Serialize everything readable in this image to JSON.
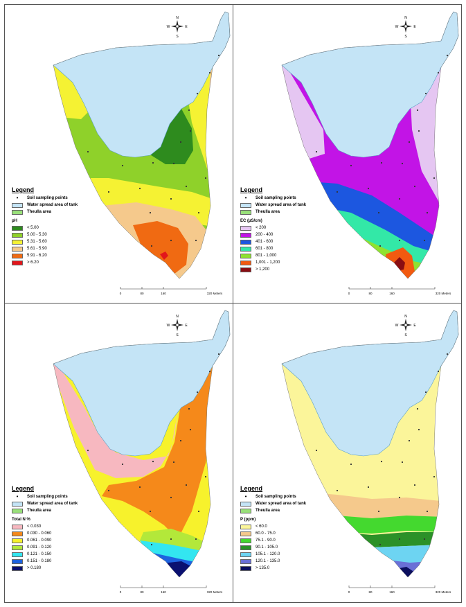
{
  "panels": [
    {
      "id": "ph",
      "legend_title": "Legend",
      "common": {
        "points": "Soil sampling points",
        "water": "Water spread area of tank",
        "theulla": "Theulla area"
      },
      "variable": "pH",
      "classes": [
        {
          "label": "< 5.00",
          "color": "#2e8b1e"
        },
        {
          "label": "5.00 - 5.30",
          "color": "#8fd12a"
        },
        {
          "label": "5.31 - 5.60",
          "color": "#f5f233"
        },
        {
          "label": "5.61 - 5.90",
          "color": "#f5c98c"
        },
        {
          "label": "5.91 - 6.20",
          "color": "#f06a12"
        },
        {
          "label": "> 6.20",
          "color": "#e2161b"
        }
      ]
    },
    {
      "id": "ec",
      "legend_title": "Legend",
      "common": {
        "points": "Soil sampling points",
        "water": "Water spread area of tank",
        "theulla": "Theulla area"
      },
      "variable": "EC (µS/cm)",
      "classes": [
        {
          "label": "< 200",
          "color": "#e5c6f2"
        },
        {
          "label": "200 - 400",
          "color": "#c214e6"
        },
        {
          "label": "401 - 600",
          "color": "#1c57e0"
        },
        {
          "label": "601 - 800",
          "color": "#33e8a7"
        },
        {
          "label": "801 - 1,000",
          "color": "#8fe230"
        },
        {
          "label": "1,001 - 1,200",
          "color": "#f25a10"
        },
        {
          "label": "> 1,200",
          "color": "#8a0d12"
        }
      ]
    },
    {
      "id": "tn",
      "legend_title": "Legend",
      "common": {
        "points": "Soil sampling points",
        "water": "Water spread area of tank",
        "theulla": "Theulla area"
      },
      "variable": "Total N %",
      "classes": [
        {
          "label": "< 0.030",
          "color": "#f7b8c0"
        },
        {
          "label": "0.030 - 0.060",
          "color": "#f5891a"
        },
        {
          "label": "0.061 - 0.090",
          "color": "#f7f22c"
        },
        {
          "label": "0.091 - 0.120",
          "color": "#b3e83a"
        },
        {
          "label": "0.121 - 0.150",
          "color": "#33e6f0"
        },
        {
          "label": "0.151 - 0.180",
          "color": "#1d63e0"
        },
        {
          "label": "> 0.180",
          "color": "#0a1070"
        }
      ]
    },
    {
      "id": "p",
      "legend_title": "Legend",
      "common": {
        "points": "Soil sampling points",
        "water": "Water spread area of tank",
        "theulla": "Theulla area"
      },
      "variable": "P (ppm)",
      "classes": [
        {
          "label": "< 60.0",
          "color": "#fbf59a"
        },
        {
          "label": "60.0 - 75.0",
          "color": "#f5c98c"
        },
        {
          "label": "75.1 - 90.0",
          "color": "#44d92f"
        },
        {
          "label": "90.1 - 105.0",
          "color": "#2b9128"
        },
        {
          "label": "105.1 - 120.0",
          "color": "#6dd4f2"
        },
        {
          "label": "120.1 - 135.0",
          "color": "#6a70d6"
        },
        {
          "label": "> 135.0",
          "color": "#0b0f5e"
        }
      ]
    }
  ],
  "compass": {
    "n": "N",
    "s": "S",
    "e": "E",
    "w": "W"
  },
  "scale": {
    "ticks": [
      "0",
      "80",
      "160",
      "320 Meters"
    ]
  },
  "colors": {
    "water": "#c4e4f6",
    "water_stroke": "#5b9fc4",
    "theulla": "#99e07a",
    "point": "#333333"
  }
}
